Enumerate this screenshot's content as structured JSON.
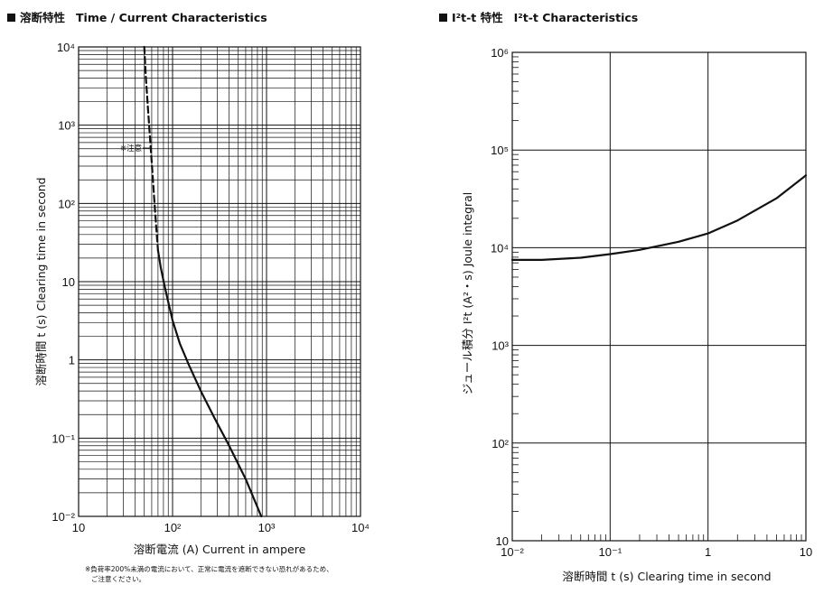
{
  "chart_data": [
    {
      "type": "line",
      "title_mark": "■",
      "title_jp": "溶断特性",
      "title_en": "Time / Current Characteristics",
      "xlabel": "溶断電流 (A)  Current in ampere",
      "ylabel": "溶断時間 t (s)  Clearing time in second",
      "xscale": "log",
      "yscale": "log",
      "xlim": [
        10,
        10000
      ],
      "ylim": [
        0.01,
        10000
      ],
      "grid": true,
      "x_tick_labels": [
        "10",
        "10²",
        "10³",
        "10⁴"
      ],
      "y_tick_labels": [
        "10⁻²",
        "10⁻¹",
        "1",
        "10",
        "10²",
        "10³",
        "10⁴"
      ],
      "series": [
        {
          "style": "dashed",
          "x": [
            50,
            52,
            55,
            58,
            61,
            64,
            67,
            70
          ],
          "y": [
            10000,
            4000,
            1500,
            600,
            250,
            110,
            50,
            25
          ]
        },
        {
          "style": "solid",
          "x": [
            70,
            75,
            82,
            90,
            100,
            120,
            150,
            200,
            280,
            400,
            600,
            880
          ],
          "y": [
            25,
            15,
            9,
            5.5,
            3.2,
            1.6,
            0.85,
            0.4,
            0.18,
            0.08,
            0.03,
            0.01
          ]
        }
      ],
      "annotation": "※注意",
      "footnote_line1": "※負荷率200%未満の電流において、正常に電流を遮断できない恐れがあるため、",
      "footnote_line2": "ご注意ください。"
    },
    {
      "type": "line",
      "title_mark": "■",
      "title_jp": "I²t-t 特性",
      "title_en": "I²t-t Characteristics",
      "xlabel": "溶断時間 t (s)  Clearing time in second",
      "ylabel": "ジュール積分 I²t (A²・s)  Joule integral",
      "xscale": "log",
      "yscale": "log",
      "xlim": [
        0.01,
        10
      ],
      "ylim": [
        10,
        1000000
      ],
      "grid": true,
      "x_tick_labels": [
        "10⁻²",
        "10⁻¹",
        "1",
        "10"
      ],
      "y_tick_labels": [
        "10",
        "10²",
        "10³",
        "10⁴",
        "10⁵",
        "10⁶"
      ],
      "series": [
        {
          "style": "solid",
          "x": [
            0.01,
            0.02,
            0.05,
            0.1,
            0.2,
            0.5,
            1,
            2,
            5,
            10
          ],
          "y": [
            7500,
            7500,
            7900,
            8600,
            9500,
            11500,
            14000,
            19000,
            32000,
            55000
          ]
        }
      ]
    }
  ]
}
